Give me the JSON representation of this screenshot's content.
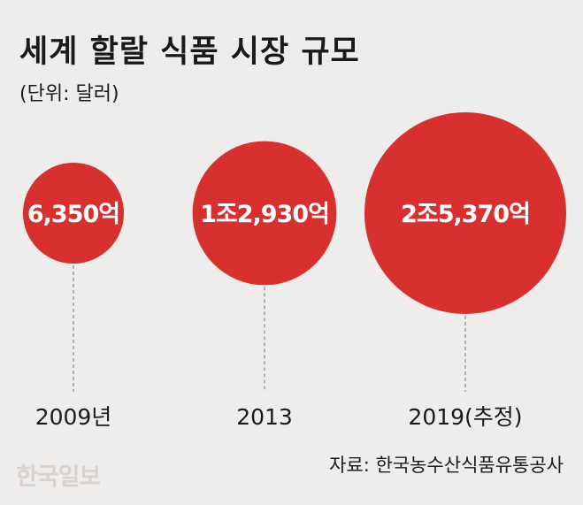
{
  "title": "세계 할랄 식품 시장 규모",
  "unit": "(단위: 달러)",
  "source": "자료: 한국농수산식품유통공사",
  "logo": "한국일보",
  "colors": {
    "bubble": "#d8302f",
    "background": "#efedec",
    "text": "#1a1a1a",
    "label": "#ffffff",
    "leader_line": "#888888"
  },
  "chart_data": {
    "type": "bubble",
    "title": "세계 할랄 식품 시장 규모",
    "unit": "(단위: 달러)",
    "categories": [
      "2009년",
      "2013",
      "2019(추정)"
    ],
    "value_labels": [
      "6,350억",
      "1조2,930억",
      "2조5,370억"
    ],
    "values": [
      635000000000,
      1293000000000,
      2537000000000
    ]
  }
}
